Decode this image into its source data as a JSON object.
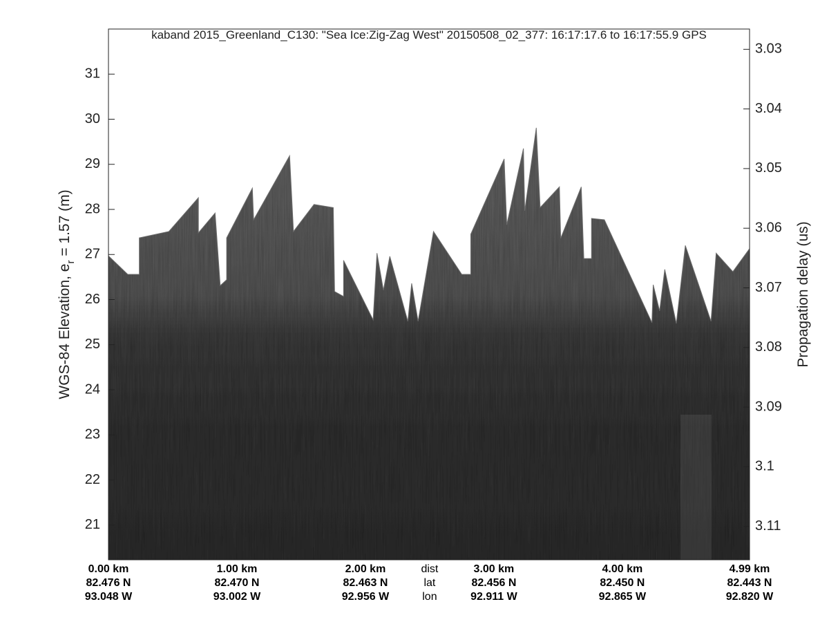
{
  "chart_data": {
    "type": "echogram",
    "title": "kaband 2015_Greenland_C130: \"Sea Ice:Zig-Zag West\"  20150508_02_377: 16:17:17.6 to 16:17:55.9 GPS",
    "ylabel_parts": [
      "WGS-84 Elevation, e",
      "r",
      " = 1.57 (m)"
    ],
    "y2label": "Propagation delay (us)",
    "ylim": [
      20.23,
      32.0
    ],
    "yticks": [
      21,
      22,
      23,
      24,
      25,
      26,
      27,
      28,
      29,
      30,
      31
    ],
    "y2lim": [
      3.0266,
      3.1156
    ],
    "y2reverse": true,
    "y2ticks": [
      3.03,
      3.04,
      3.05,
      3.06,
      3.07,
      3.08,
      3.09,
      3.1,
      3.11
    ],
    "xlim": [
      0,
      4.99
    ],
    "xticks": [
      {
        "value": 0,
        "label": "0.00 km"
      },
      {
        "value": 1,
        "label": "1.00 km"
      },
      {
        "value": 2,
        "label": "2.00 km"
      },
      {
        "value": 3,
        "label": "3.00 km"
      },
      {
        "value": 4,
        "label": "4.00 km"
      },
      {
        "value": 4.99,
        "label": "4.99 km"
      }
    ],
    "lat_labels": [
      "82.476 N",
      "82.470 N",
      "82.463 N",
      "82.456 N",
      "82.450 N",
      "82.443 N"
    ],
    "lon_labels": [
      "93.048 W",
      "93.002 W",
      "92.956 W",
      "92.911 W",
      "92.865 W",
      "92.820 W"
    ],
    "row_labels": [
      "dist",
      "lat",
      "lon"
    ],
    "surface": {
      "color": "#6e6e6e",
      "x": [
        0.0,
        0.15,
        0.24,
        0.24,
        0.47,
        0.7,
        0.7,
        0.83,
        0.87,
        0.92,
        0.92,
        1.12,
        1.13,
        1.41,
        1.44,
        1.6,
        1.75,
        1.76,
        1.83,
        1.83,
        2.06,
        2.09,
        2.14,
        2.19,
        2.33,
        2.36,
        2.41,
        2.53,
        2.75,
        2.82,
        2.82,
        3.08,
        3.1,
        3.23,
        3.24,
        3.33,
        3.36,
        3.51,
        3.52,
        3.68,
        3.7,
        3.76,
        3.76,
        3.86,
        4.23,
        4.24,
        4.29,
        4.33,
        4.42,
        4.49,
        4.69,
        4.73,
        4.86,
        4.99
      ],
      "values": [
        26.97,
        26.56,
        26.56,
        27.37,
        27.51,
        28.26,
        27.48,
        27.92,
        26.31,
        26.44,
        27.37,
        28.47,
        27.77,
        29.19,
        27.51,
        28.11,
        28.04,
        26.18,
        26.07,
        26.87,
        25.55,
        27.03,
        26.21,
        26.96,
        25.52,
        26.36,
        25.52,
        27.51,
        26.56,
        26.56,
        27.45,
        29.12,
        27.66,
        29.35,
        27.97,
        29.81,
        28.04,
        28.5,
        27.36,
        28.5,
        26.91,
        26.91,
        27.8,
        27.77,
        25.49,
        26.33,
        25.75,
        26.67,
        25.47,
        27.2,
        25.52,
        27.03,
        26.62,
        27.13
      ]
    }
  }
}
